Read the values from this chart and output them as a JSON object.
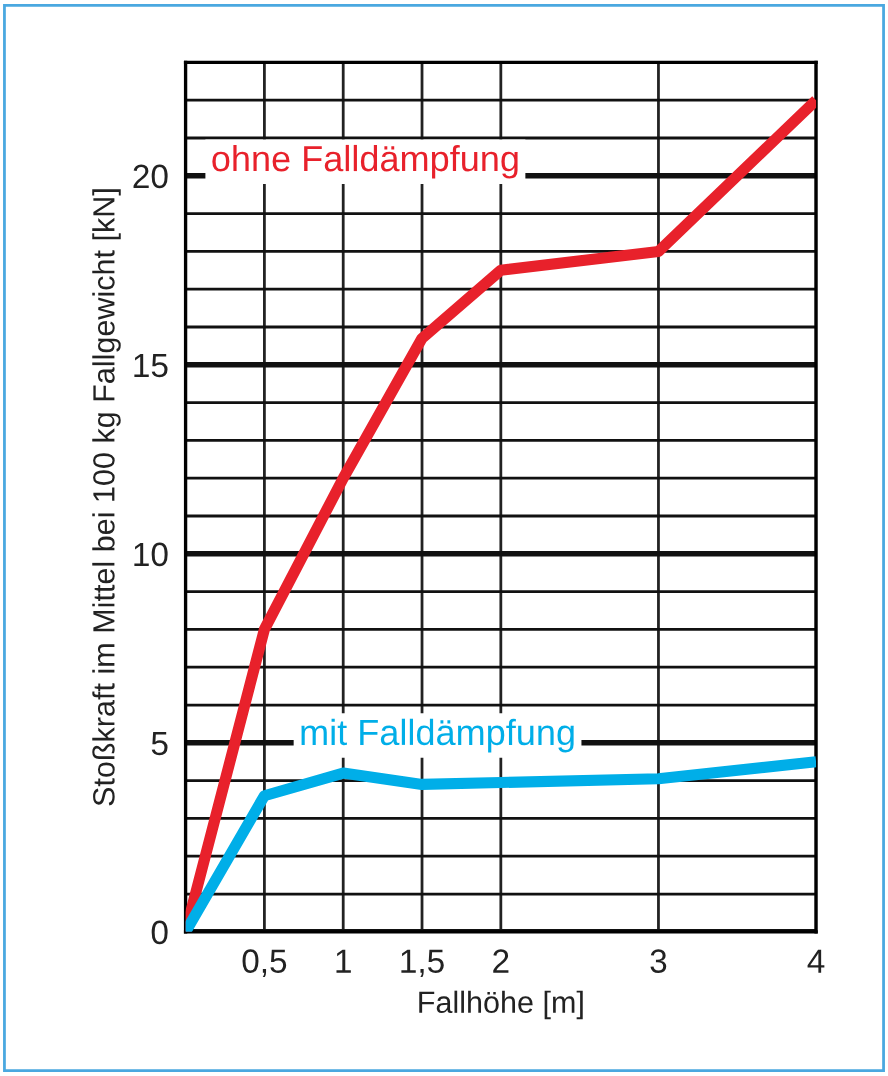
{
  "chart_data": {
    "type": "line",
    "xlabel": "Fallhöhe [m]",
    "ylabel": "Stoßkraft im Mittel bei 100 kg Fallgewicht [kN]",
    "x": [
      0,
      0.5,
      1,
      1.5,
      2,
      3,
      4
    ],
    "series": [
      {
        "name": "ohne Falldämpfung",
        "color": "#e8212b",
        "values": [
          0,
          8,
          12,
          15.7,
          17.5,
          18,
          22
        ]
      },
      {
        "name": "mit Falldämpfung",
        "color": "#00aee8",
        "values": [
          0,
          3.6,
          4.2,
          3.9,
          3.95,
          4.05,
          4.5
        ]
      }
    ],
    "xlim": [
      0,
      4
    ],
    "ylim": [
      0,
      23
    ],
    "xticks": [
      {
        "value": 0,
        "label": null
      },
      {
        "value": 0.5,
        "label": "0,5"
      },
      1,
      {
        "value": 1.5,
        "label": "1,5"
      },
      2,
      3,
      4
    ],
    "yticks": [
      0,
      {
        "value": 1,
        "label": null
      },
      {
        "value": 2,
        "label": null
      },
      {
        "value": 3,
        "label": null
      },
      {
        "value": 4,
        "label": null
      },
      5,
      {
        "value": 6,
        "label": null
      },
      {
        "value": 7,
        "label": null
      },
      {
        "value": 8,
        "label": null
      },
      {
        "value": 9,
        "label": null
      },
      10,
      {
        "value": 11,
        "label": null
      },
      {
        "value": 12,
        "label": null
      },
      {
        "value": 13,
        "label": null
      },
      {
        "value": 14,
        "label": null
      },
      15,
      {
        "value": 16,
        "label": null
      },
      {
        "value": 17,
        "label": null
      },
      {
        "value": 18,
        "label": null
      },
      {
        "value": 19,
        "label": null
      },
      20,
      {
        "value": 21,
        "label": null
      },
      {
        "value": 22,
        "label": null
      },
      {
        "value": 23,
        "label": null
      }
    ],
    "grid": true,
    "legend": false,
    "marker": "none",
    "line_style": "solid"
  }
}
